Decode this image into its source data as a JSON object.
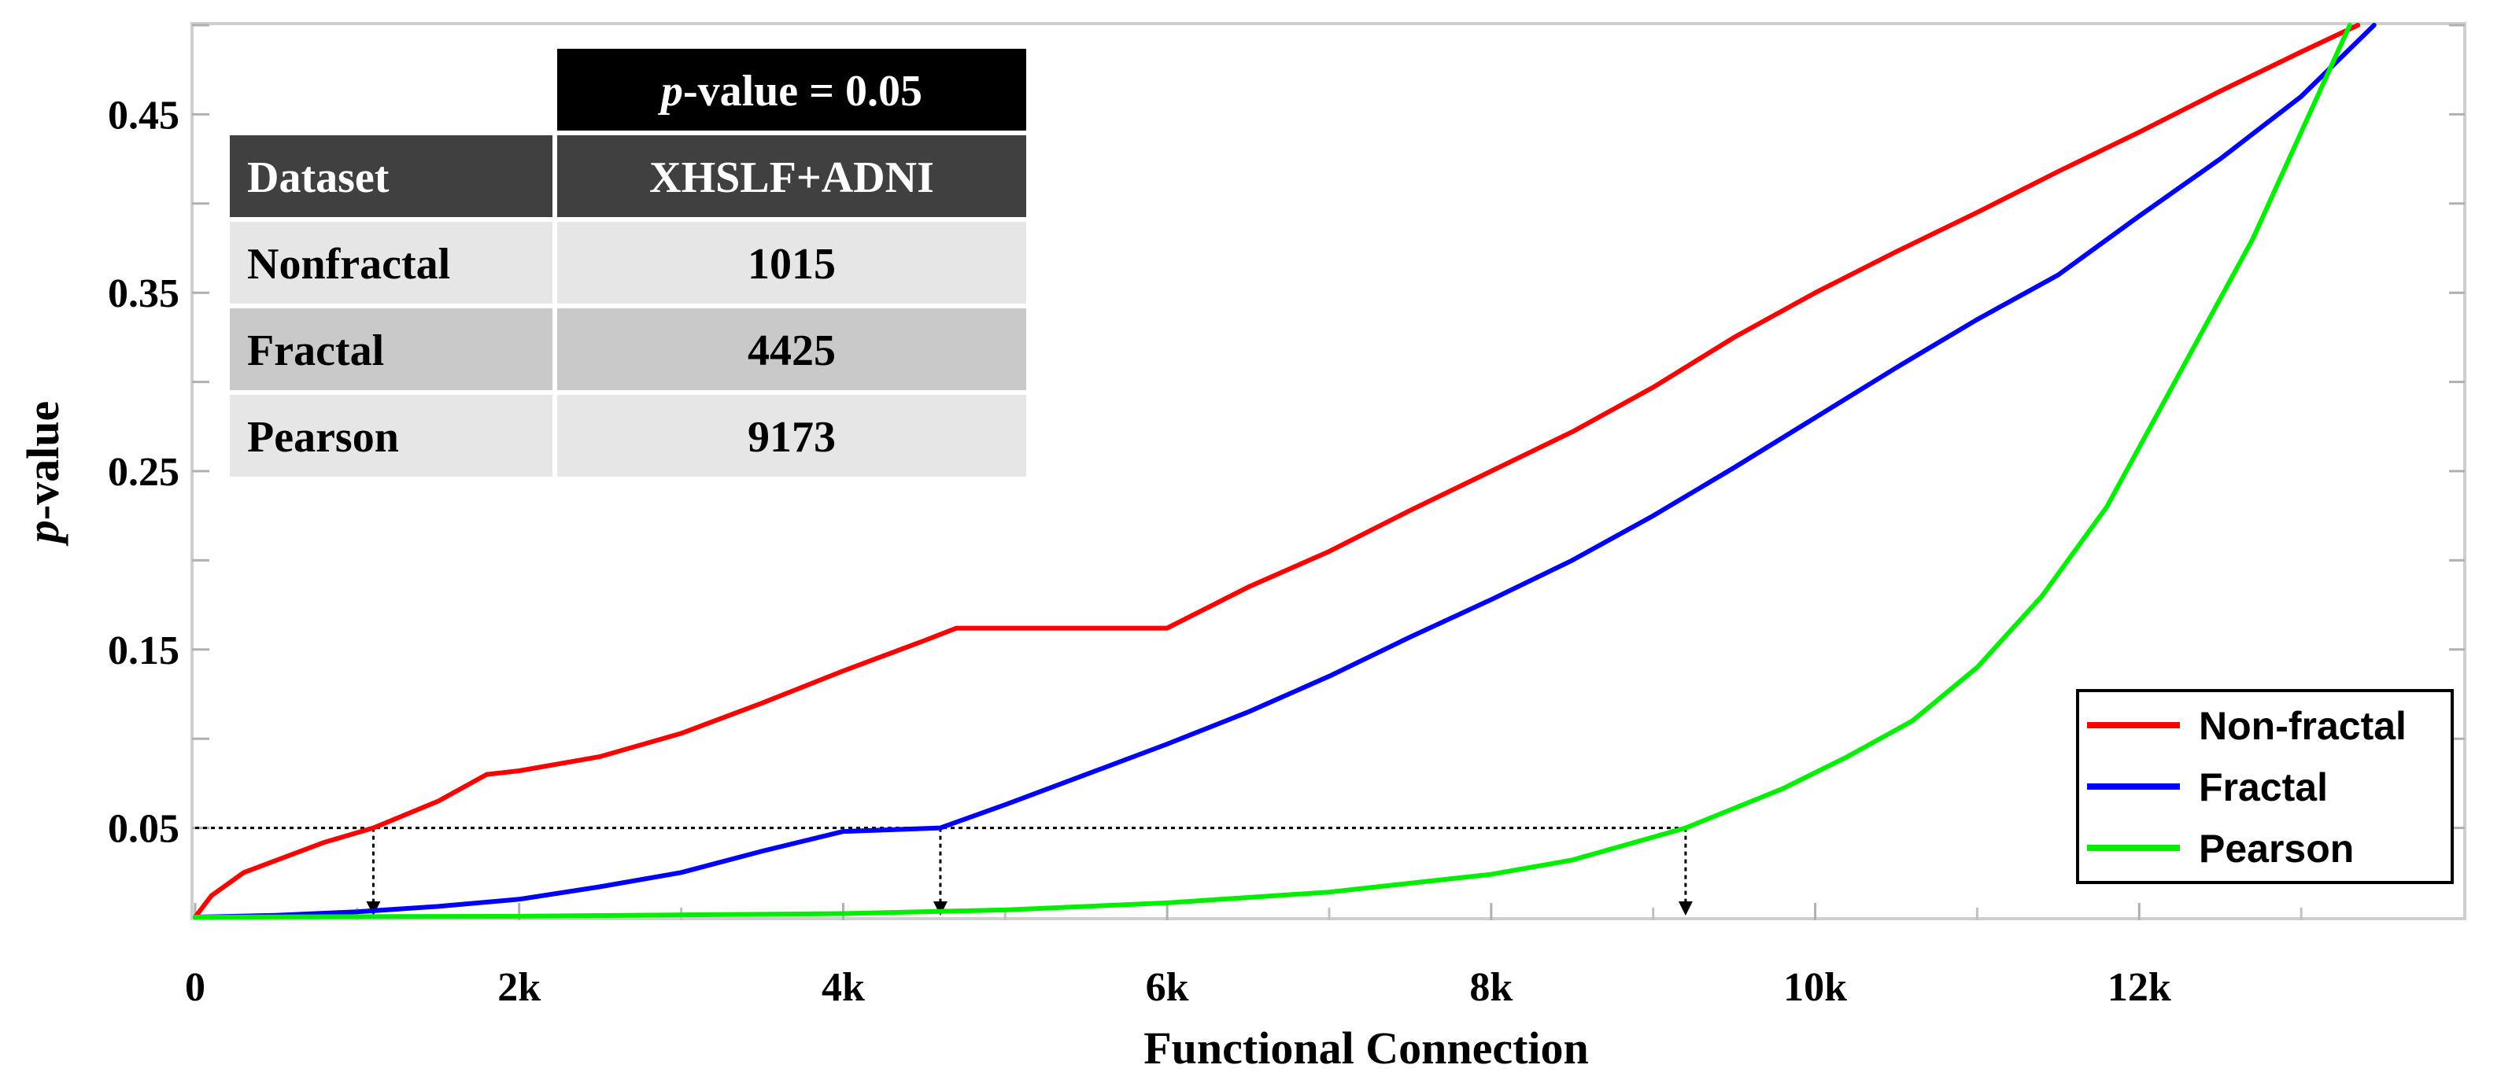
{
  "chart_data": {
    "type": "line",
    "xlabel": "Functional Connection",
    "ylabel": "p-value",
    "xlim": [
      0,
      14000
    ],
    "ylim": [
      0,
      0.5
    ],
    "x_ticks": [
      {
        "value": 0,
        "label": "0"
      },
      {
        "value": 2000,
        "label": "2k"
      },
      {
        "value": 4000,
        "label": "4k"
      },
      {
        "value": 6000,
        "label": "6k"
      },
      {
        "value": 8000,
        "label": "8k"
      },
      {
        "value": 10000,
        "label": "10k"
      },
      {
        "value": 12000,
        "label": "12k"
      }
    ],
    "y_ticks": [
      {
        "value": 0.05,
        "label": "0.05"
      },
      {
        "value": 0.15,
        "label": "0.15"
      },
      {
        "value": 0.25,
        "label": "0.25"
      },
      {
        "value": 0.35,
        "label": "0.35"
      },
      {
        "value": 0.45,
        "label": "0.45"
      }
    ],
    "threshold": 0.05,
    "threshold_crossings": [
      1100,
      4600,
      9200
    ],
    "legend_position": "bottom-right",
    "series": [
      {
        "name": "Non-fractal",
        "color": "#ff0000",
        "x": [
          0,
          100,
          300,
          800,
          1100,
          1500,
          1800,
          2000,
          2500,
          3000,
          3500,
          4000,
          4500,
          4700,
          5000,
          6000,
          6500,
          7000,
          7500,
          8000,
          8500,
          9000,
          9500,
          10000,
          10500,
          11000,
          11500,
          12000,
          12500,
          13000,
          13350
        ],
        "y": [
          0,
          0.012,
          0.025,
          0.042,
          0.05,
          0.065,
          0.08,
          0.082,
          0.09,
          0.103,
          0.12,
          0.138,
          0.155,
          0.162,
          0.162,
          0.162,
          0.185,
          0.205,
          0.228,
          0.25,
          0.272,
          0.297,
          0.325,
          0.35,
          0.373,
          0.395,
          0.418,
          0.44,
          0.463,
          0.485,
          0.5
        ]
      },
      {
        "name": "Fractal",
        "color": "#0000ff",
        "x": [
          0,
          500,
          1000,
          1500,
          2000,
          2500,
          3000,
          3500,
          4000,
          4600,
          5000,
          5500,
          6000,
          6500,
          7000,
          7500,
          8000,
          8500,
          9000,
          9500,
          10000,
          10500,
          11000,
          11500,
          12000,
          12500,
          13000,
          13450
        ],
        "y": [
          0,
          0.001,
          0.003,
          0.006,
          0.01,
          0.017,
          0.025,
          0.037,
          0.048,
          0.05,
          0.063,
          0.08,
          0.097,
          0.115,
          0.135,
          0.157,
          0.178,
          0.2,
          0.225,
          0.252,
          0.28,
          0.308,
          0.335,
          0.36,
          0.393,
          0.425,
          0.46,
          0.5
        ]
      },
      {
        "name": "Pearson",
        "color": "#00ee00",
        "x": [
          0,
          2000,
          4000,
          5000,
          6000,
          7000,
          8000,
          8500,
          9200,
          9800,
          10200,
          10600,
          11000,
          11400,
          11800,
          12100,
          12400,
          12700,
          12900,
          13100,
          13300
        ],
        "y": [
          0,
          0.0005,
          0.002,
          0.004,
          0.008,
          0.014,
          0.024,
          0.032,
          0.05,
          0.072,
          0.09,
          0.11,
          0.14,
          0.18,
          0.23,
          0.28,
          0.33,
          0.38,
          0.42,
          0.46,
          0.5
        ]
      }
    ],
    "table": {
      "title_italic": "p",
      "title_rest": "-value = 0.05",
      "headers": [
        "Dataset",
        "XHSLF+ADNI"
      ],
      "rows": [
        [
          "Nonfractal",
          "1015"
        ],
        [
          "Fractal",
          "4425"
        ],
        [
          "Pearson",
          "9173"
        ]
      ]
    }
  }
}
